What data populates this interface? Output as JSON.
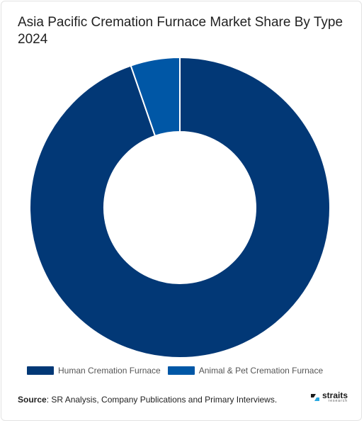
{
  "title": "Asia Pacific Cremation Furnace Market Share By Type 2024",
  "chart_data": {
    "type": "pie",
    "donut": true,
    "series": [
      {
        "name": "Human Cremation Furnace",
        "value": 94.7,
        "color": "#023876"
      },
      {
        "name": "Animal & Pet Cremation Furnace",
        "value": 5.3,
        "color": "#0057A6"
      }
    ],
    "legend_position": "bottom"
  },
  "source": {
    "label": "Source",
    "text": ": SR Analysis, Company Publications and Primary Interviews."
  },
  "logo": {
    "name": "straits",
    "sub": "research"
  }
}
